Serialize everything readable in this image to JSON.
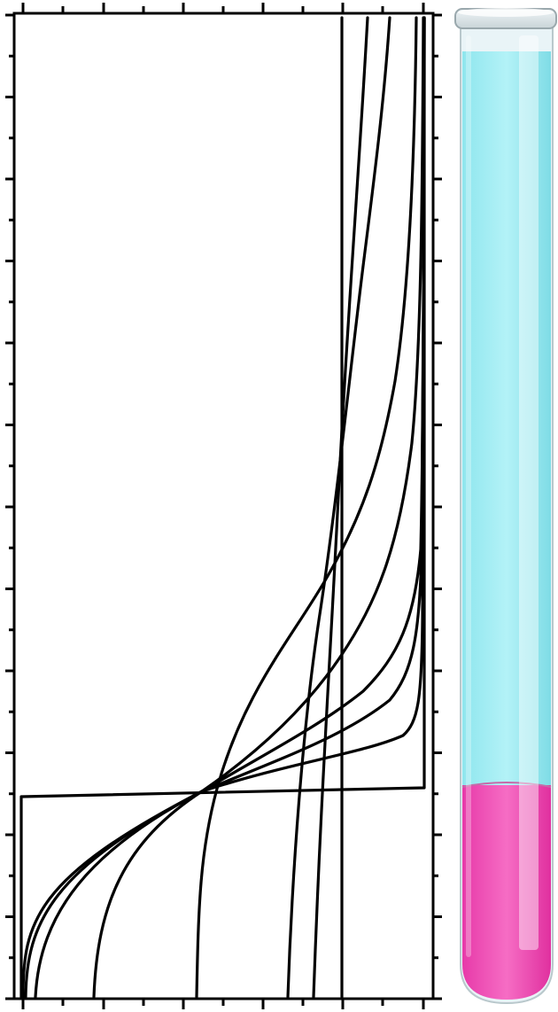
{
  "diagram": {
    "description_none": "",
    "profiles": [
      {
        "name": "",
        "key": "step-initial"
      },
      {
        "name": "",
        "key": "profile-1"
      },
      {
        "name": "",
        "key": "profile-2"
      },
      {
        "name": "",
        "key": "profile-3"
      },
      {
        "name": "",
        "key": "profile-4"
      },
      {
        "name": "",
        "key": "profile-5"
      },
      {
        "name": "",
        "key": "profile-6"
      },
      {
        "name": "",
        "key": "profile-7"
      },
      {
        "name": "",
        "key": "profile-8"
      }
    ],
    "tube": {
      "upper_liquid_color": "#a6eef4",
      "lower_liquid_color": "#f043b3",
      "glass_color": "#dfeef2"
    },
    "colors": {
      "lines": "#000000",
      "background": "#ffffff"
    }
  }
}
